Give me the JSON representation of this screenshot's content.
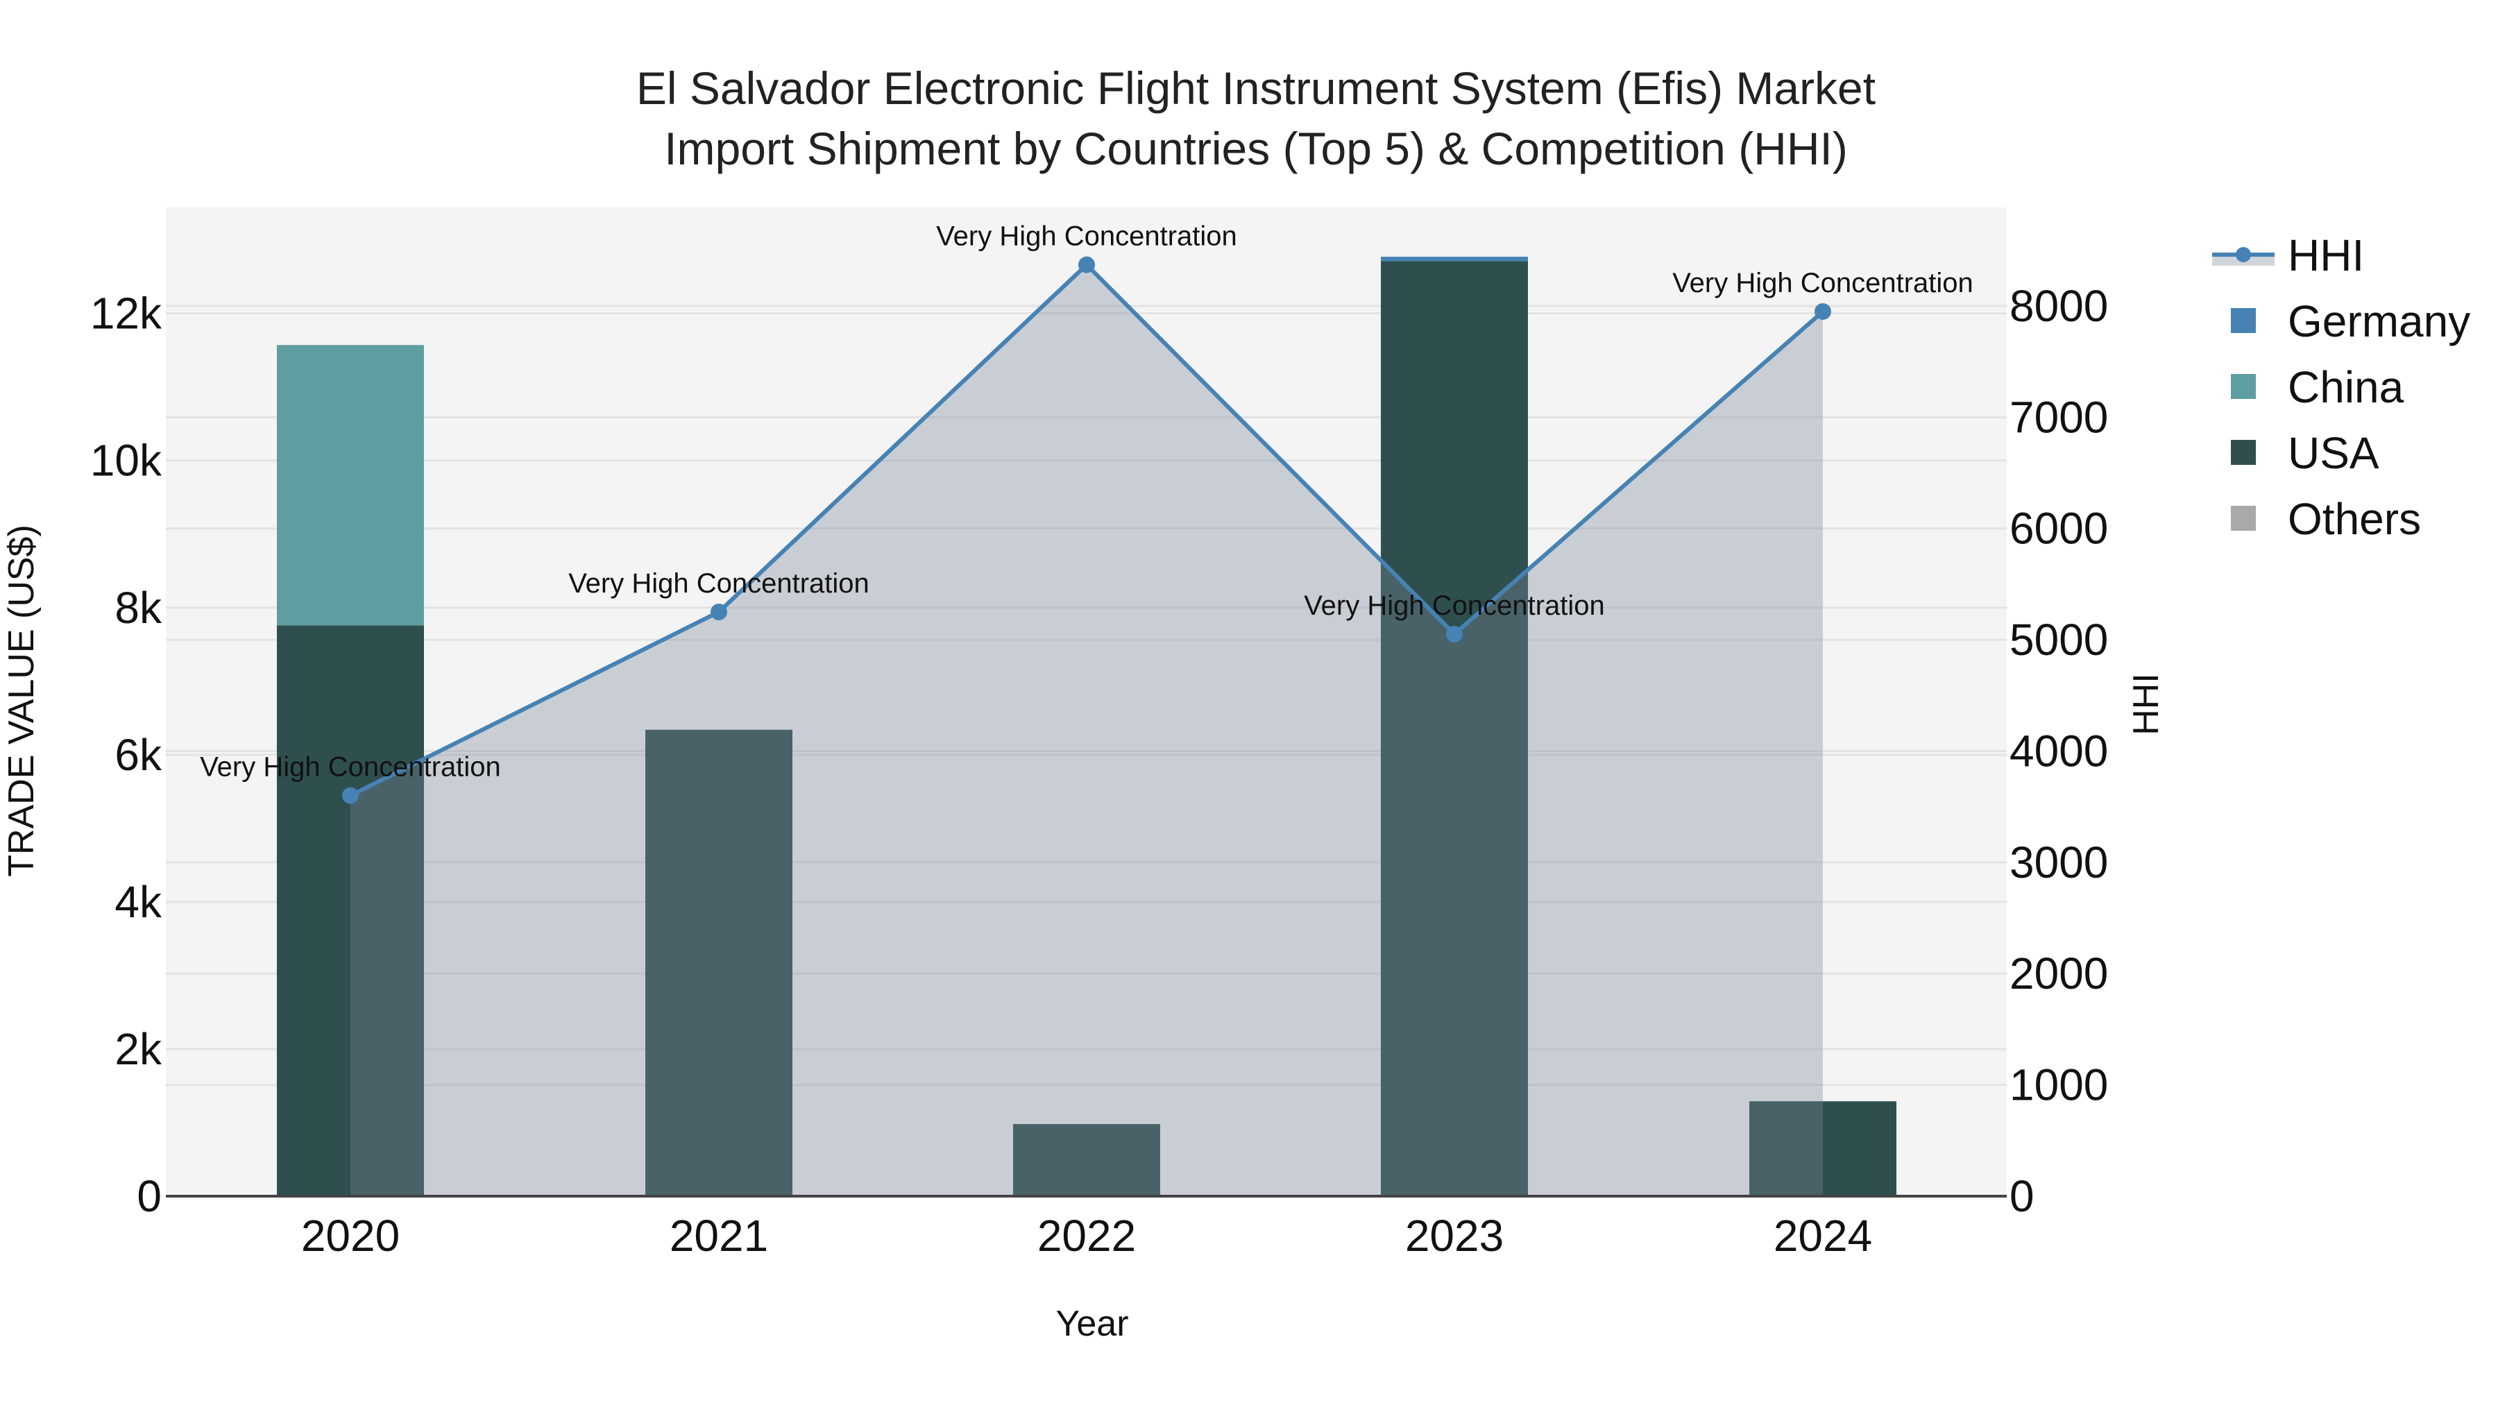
{
  "chart_data": {
    "type": "bar",
    "title": "El Salvador Electronic Flight Instrument System (Efis) Market Import Shipment by Countries (Top 5) & Competition (HHI)",
    "title_lines": [
      "El Salvador Electronic Flight Instrument System (Efis) Market",
      "Import Shipment by Countries (Top 5) & Competition (HHI)"
    ],
    "xlabel": "Year",
    "ylabel": "TRADE VALUE (US$)",
    "y2label": "HHI",
    "categories": [
      "2020",
      "2021",
      "2022",
      "2023",
      "2024"
    ],
    "barmode": "stack",
    "series": [
      {
        "name": "USA",
        "type": "bar",
        "axis": "y",
        "color": "#2f4f4f",
        "values": [
          7760,
          6340,
          980,
          12710,
          1290
        ]
      },
      {
        "name": "China",
        "type": "bar",
        "axis": "y",
        "color": "#5f9ea0",
        "values": [
          3810,
          0,
          0,
          0,
          0
        ]
      },
      {
        "name": "Germany",
        "type": "bar",
        "axis": "y",
        "color": "#4682b4",
        "values": [
          0,
          0,
          0,
          60,
          0
        ]
      },
      {
        "name": "Others",
        "type": "bar",
        "axis": "y",
        "color": "#a9a9a9",
        "values": [
          0,
          0,
          0,
          0,
          0
        ]
      },
      {
        "name": "HHI",
        "type": "line+area",
        "axis": "y2",
        "color": "#4682b4",
        "fill": "rgba(119,136,153,0.35)",
        "values": [
          3600,
          5250,
          8370,
          5050,
          7950
        ]
      }
    ],
    "annotations": [
      {
        "category": "2020",
        "text": "Very High Concentration"
      },
      {
        "category": "2021",
        "text": "Very High Concentration"
      },
      {
        "category": "2022",
        "text": "Very High Concentration"
      },
      {
        "category": "2023",
        "text": "Very High Concentration"
      },
      {
        "category": "2024",
        "text": "Very High Concentration"
      }
    ],
    "yticks": [
      {
        "value": 0,
        "label": "0"
      },
      {
        "value": 2000,
        "label": "2k"
      },
      {
        "value": 4000,
        "label": "4k"
      },
      {
        "value": 6000,
        "label": "6k"
      },
      {
        "value": 8000,
        "label": "8k"
      },
      {
        "value": 10000,
        "label": "10k"
      },
      {
        "value": 12000,
        "label": "12k"
      }
    ],
    "y2ticks": [
      {
        "value": 0,
        "label": "0"
      },
      {
        "value": 1000,
        "label": "1000"
      },
      {
        "value": 2000,
        "label": "2000"
      },
      {
        "value": 3000,
        "label": "3000"
      },
      {
        "value": 4000,
        "label": "4000"
      },
      {
        "value": 5000,
        "label": "5000"
      },
      {
        "value": 6000,
        "label": "6000"
      },
      {
        "value": 7000,
        "label": "7000"
      },
      {
        "value": 8000,
        "label": "8000"
      }
    ],
    "ylim": [
      0,
      13440
    ],
    "y2lim": [
      0,
      8885
    ],
    "grid": true,
    "legend": {
      "position": "right",
      "items": [
        {
          "label": "HHI",
          "kind": "line",
          "color": "#4682b4"
        },
        {
          "label": "Germany",
          "kind": "square",
          "color": "#4682b4"
        },
        {
          "label": "China",
          "kind": "square",
          "color": "#5f9ea0"
        },
        {
          "label": "USA",
          "kind": "square",
          "color": "#2f4f4f"
        },
        {
          "label": "Others",
          "kind": "square",
          "color": "#a9a9a9"
        }
      ]
    },
    "colors": {
      "plot_bg": "#f4f4f4",
      "grid": "#e3e3e3",
      "hhi_fill": "rgba(119,136,153,0.35)",
      "axis_line": "#444444"
    }
  }
}
